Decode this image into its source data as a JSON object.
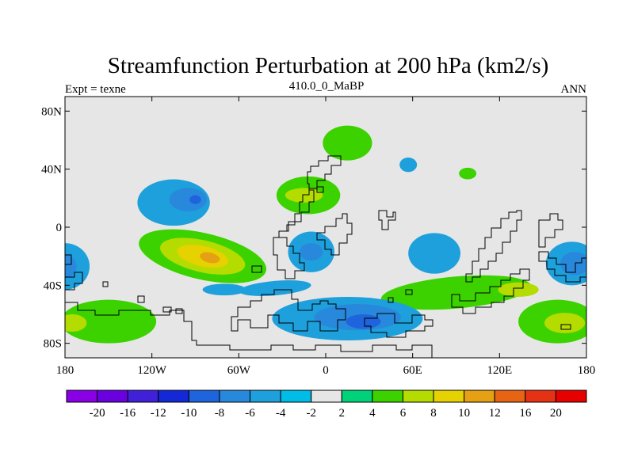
{
  "chart_data": {
    "type": "heatmap",
    "title": "Streamfunction Perturbation at 200 hPa (km2/s)",
    "left_label": "Expt = texne",
    "center_label": "410.0_0_MaBP",
    "right_label": "ANN",
    "x_axis": {
      "range": [
        -180,
        180
      ],
      "ticks": [
        {
          "value": -180,
          "label": "180"
        },
        {
          "value": -120,
          "label": "120W"
        },
        {
          "value": -60,
          "label": "60W"
        },
        {
          "value": 0,
          "label": "0"
        },
        {
          "value": 60,
          "label": "60E"
        },
        {
          "value": 120,
          "label": "120E"
        },
        {
          "value": 180,
          "label": "180"
        }
      ]
    },
    "y_axis": {
      "range": [
        -90,
        90
      ],
      "ticks": [
        {
          "value": 80,
          "label": "80N"
        },
        {
          "value": 40,
          "label": "40N"
        },
        {
          "value": 0,
          "label": "0"
        },
        {
          "value": -40,
          "label": "40S"
        },
        {
          "value": -80,
          "label": "80S"
        }
      ]
    },
    "colorbar": {
      "colors": [
        "#8a00e6",
        "#6a00e0",
        "#4020d8",
        "#1428d8",
        "#1e64dc",
        "#2888dc",
        "#1ea0dc",
        "#00bde8",
        "#e6e6e6",
        "#00d27a",
        "#3cd200",
        "#b4dc00",
        "#e6d200",
        "#e6a014",
        "#e66414",
        "#e63214",
        "#e60000"
      ],
      "labels": [
        "-20",
        "-16",
        "-12",
        "-10",
        "-8",
        "-6",
        "-4",
        "-2",
        "2",
        "4",
        "6",
        "8",
        "10",
        "12",
        "16",
        "20"
      ]
    },
    "background_color": "#e6e6e6",
    "features": [
      {
        "lon": -105,
        "lat": 17,
        "rlon": 25,
        "rlat": 16,
        "level": -4
      },
      {
        "lon": -95,
        "lat": 19,
        "rlon": 13,
        "rlat": 8,
        "level": -6
      },
      {
        "lon": -90,
        "lat": 19,
        "rlon": 4,
        "rlat": 3,
        "level": -8
      },
      {
        "lon": -12,
        "lat": 22,
        "rlon": 22,
        "rlat": 13,
        "level": 4
      },
      {
        "lon": -15,
        "lat": 22,
        "rlon": 13,
        "rlat": 5,
        "level": 6
      },
      {
        "lon": 15,
        "lat": 58,
        "rlon": 17,
        "rlat": 12,
        "level": 4
      },
      {
        "lon": 57,
        "lat": 43,
        "rlon": 6,
        "rlat": 5,
        "level": -4
      },
      {
        "lon": 98,
        "lat": 37,
        "rlon": 6,
        "rlat": 4,
        "level": 4
      },
      {
        "lon": -85,
        "lat": -20,
        "rlon": 45,
        "rlat": 16,
        "level": 4,
        "rot": 13
      },
      {
        "lon": -85,
        "lat": -20,
        "rlon": 30,
        "rlat": 11,
        "level": 6,
        "rot": 13
      },
      {
        "lon": -85,
        "lat": -20,
        "rlon": 18,
        "rlat": 7,
        "level": 8,
        "rot": 13
      },
      {
        "lon": -80,
        "lat": -21,
        "rlon": 7,
        "rlat": 3.5,
        "level": 10,
        "rot": 13
      },
      {
        "lon": -10,
        "lat": -17,
        "rlon": 16,
        "rlat": 14,
        "level": -4
      },
      {
        "lon": -10,
        "lat": -17,
        "rlon": 8,
        "rlat": 6,
        "level": -6
      },
      {
        "lon": 75,
        "lat": -18,
        "rlon": 18,
        "rlat": 14,
        "level": -4
      },
      {
        "lon": 170,
        "lat": -25,
        "rlon": 18,
        "rlat": 15,
        "level": -4
      },
      {
        "lon": 172,
        "lat": -25,
        "rlon": 10,
        "rlat": 8,
        "level": -6
      },
      {
        "lon": -180,
        "lat": -27,
        "rlon": 17,
        "rlat": 16,
        "level": -4
      },
      {
        "lon": -180,
        "lat": -27,
        "rlon": 8,
        "rlat": 8,
        "level": -6
      },
      {
        "lon": -150,
        "lat": -65,
        "rlon": 33,
        "rlat": 15,
        "level": 4
      },
      {
        "lon": -175,
        "lat": -66,
        "rlon": 10,
        "rlat": 6,
        "level": 6
      },
      {
        "lon": 90,
        "lat": -45,
        "rlon": 52,
        "rlat": 11,
        "level": 4,
        "rot": -5
      },
      {
        "lon": 133,
        "lat": -43,
        "rlon": 14,
        "rlat": 5,
        "level": 6
      },
      {
        "lon": 160,
        "lat": -65,
        "rlon": 27,
        "rlat": 15,
        "level": 4
      },
      {
        "lon": 165,
        "lat": -66,
        "rlon": 14,
        "rlat": 7,
        "level": 6
      },
      {
        "lon": -35,
        "lat": -42,
        "rlon": 25,
        "rlat": 5,
        "level": -4,
        "rot": -5
      },
      {
        "lon": -70,
        "lat": -43,
        "rlon": 15,
        "rlat": 4,
        "level": -4
      },
      {
        "lon": 15,
        "lat": -63,
        "rlon": 52,
        "rlat": 15,
        "level": -4
      },
      {
        "lon": 22,
        "lat": -62,
        "rlon": 30,
        "rlat": 9,
        "level": -6
      },
      {
        "lon": 26,
        "lat": -65,
        "rlon": 12,
        "rlat": 5,
        "level": -8
      }
    ]
  }
}
